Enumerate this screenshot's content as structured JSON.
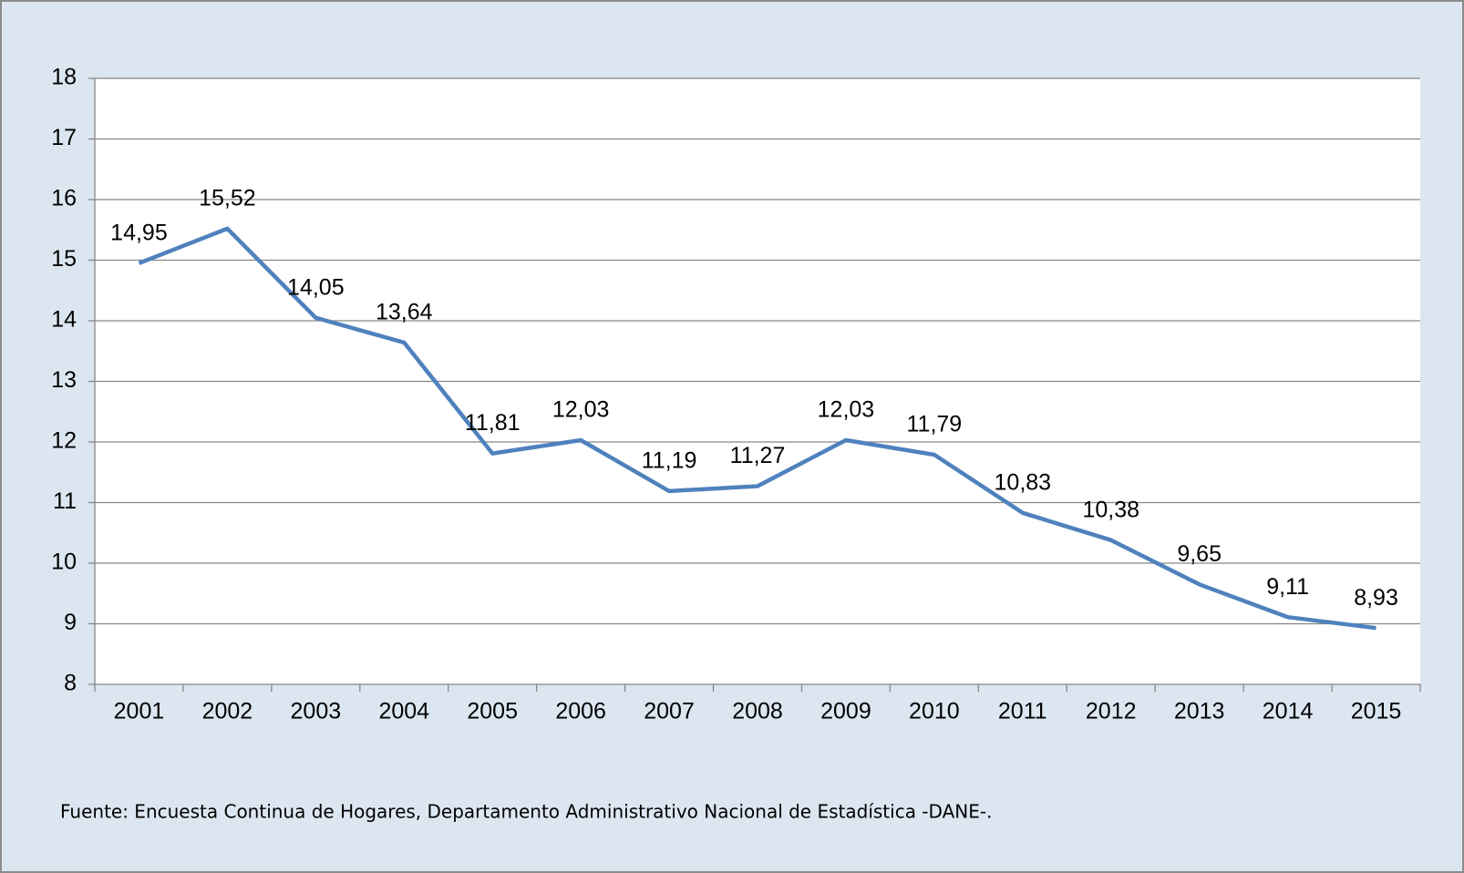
{
  "chart_data": {
    "type": "line",
    "categories": [
      "2001",
      "2002",
      "2003",
      "2004",
      "2005",
      "2006",
      "2007",
      "2008",
      "2009",
      "2010",
      "2011",
      "2012",
      "2013",
      "2014",
      "2015"
    ],
    "values": [
      14.95,
      15.52,
      14.05,
      13.64,
      11.81,
      12.03,
      11.19,
      11.27,
      12.03,
      11.79,
      10.83,
      10.38,
      9.65,
      9.11,
      8.93
    ],
    "value_labels": [
      "14,95",
      "15,52",
      "14,05",
      "13,64",
      "11,81",
      "12,03",
      "11,19",
      "11,27",
      "12,03",
      "11,79",
      "10,83",
      "10,38",
      "9,65",
      "9,11",
      "8,93"
    ],
    "color": "#4f81bd",
    "ylim": [
      8,
      18
    ],
    "yticks": [
      8,
      9,
      10,
      11,
      12,
      13,
      14,
      15,
      16,
      17,
      18
    ],
    "grid": true,
    "note": "Fuente: Encuesta Continua de Hogares, Departamento Administrativo Nacional de Estadística -DANE-."
  }
}
